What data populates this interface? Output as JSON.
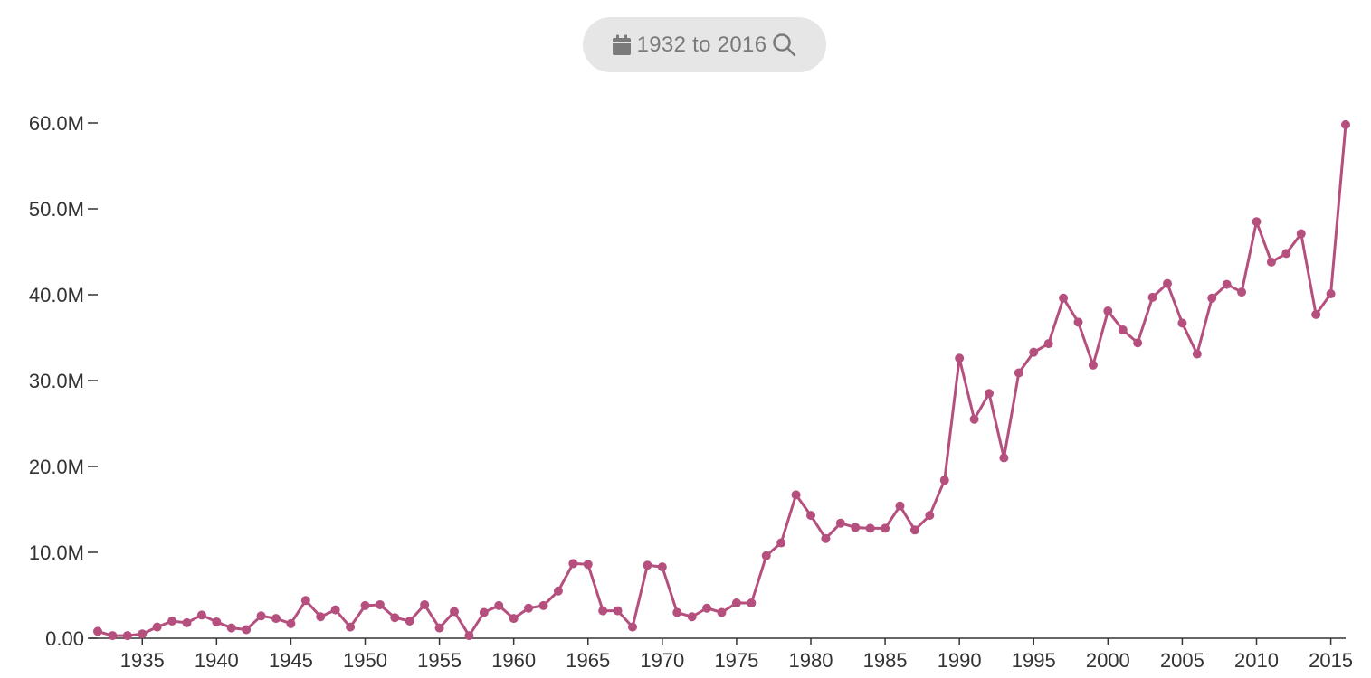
{
  "date_range": {
    "label": "1932 to 2016",
    "calendar_icon": "calendar-icon",
    "search_icon": "search-icon"
  },
  "colors": {
    "series": "#b5507e",
    "pill_background": "#e6e6e6",
    "pill_text": "#7a7a7a",
    "axis": "#333333"
  },
  "chart_data": {
    "type": "line",
    "title": "",
    "xlabel": "",
    "ylabel": "",
    "xlim": [
      1932,
      2016
    ],
    "ylim": [
      0,
      60000000
    ],
    "grid": false,
    "y_ticks": [
      {
        "value": 0,
        "label": "0.00"
      },
      {
        "value": 10000000,
        "label": "10.0M"
      },
      {
        "value": 20000000,
        "label": "20.0M"
      },
      {
        "value": 30000000,
        "label": "30.0M"
      },
      {
        "value": 40000000,
        "label": "40.0M"
      },
      {
        "value": 50000000,
        "label": "50.0M"
      },
      {
        "value": 60000000,
        "label": "60.0M"
      }
    ],
    "x_ticks": [
      {
        "value": 1935,
        "label": "1935"
      },
      {
        "value": 1940,
        "label": "1940"
      },
      {
        "value": 1945,
        "label": "1945"
      },
      {
        "value": 1950,
        "label": "1950"
      },
      {
        "value": 1955,
        "label": "1955"
      },
      {
        "value": 1960,
        "label": "1960"
      },
      {
        "value": 1965,
        "label": "1965"
      },
      {
        "value": 1970,
        "label": "1970"
      },
      {
        "value": 1975,
        "label": "1975"
      },
      {
        "value": 1980,
        "label": "1980"
      },
      {
        "value": 1985,
        "label": "1985"
      },
      {
        "value": 1990,
        "label": "1990"
      },
      {
        "value": 1995,
        "label": "1995"
      },
      {
        "value": 2000,
        "label": "2000"
      },
      {
        "value": 2005,
        "label": "2005"
      },
      {
        "value": 2010,
        "label": "2010"
      },
      {
        "value": 2015,
        "label": "2015"
      }
    ],
    "x": [
      1932,
      1933,
      1934,
      1935,
      1936,
      1937,
      1938,
      1939,
      1940,
      1941,
      1942,
      1943,
      1944,
      1945,
      1946,
      1947,
      1948,
      1949,
      1950,
      1951,
      1952,
      1953,
      1954,
      1955,
      1956,
      1957,
      1958,
      1959,
      1960,
      1961,
      1962,
      1963,
      1964,
      1965,
      1966,
      1967,
      1968,
      1969,
      1970,
      1971,
      1972,
      1973,
      1974,
      1975,
      1976,
      1977,
      1978,
      1979,
      1980,
      1981,
      1982,
      1983,
      1984,
      1985,
      1986,
      1987,
      1988,
      1989,
      1990,
      1991,
      1992,
      1993,
      1994,
      1995,
      1996,
      1997,
      1998,
      1999,
      2000,
      2001,
      2002,
      2003,
      2004,
      2005,
      2006,
      2007,
      2008,
      2009,
      2010,
      2011,
      2012,
      2013,
      2014,
      2015,
      2016
    ],
    "series": [
      {
        "values": [
          800000,
          300000,
          300000,
          500000,
          1300000,
          2000000,
          1800000,
          2700000,
          1900000,
          1200000,
          1000000,
          2600000,
          2300000,
          1700000,
          4400000,
          2500000,
          3300000,
          1300000,
          3800000,
          3900000,
          2400000,
          2000000,
          3900000,
          1200000,
          3100000,
          300000,
          3000000,
          3800000,
          2300000,
          3500000,
          3800000,
          5500000,
          8700000,
          8600000,
          3200000,
          3200000,
          1300000,
          8500000,
          8300000,
          3000000,
          2500000,
          3500000,
          3000000,
          4100000,
          4100000,
          9600000,
          11100000,
          16700000,
          14300000,
          11600000,
          13400000,
          12900000,
          12800000,
          12800000,
          15400000,
          12600000,
          14300000,
          18400000,
          32600000,
          25500000,
          28500000,
          21000000,
          30900000,
          33300000,
          34300000,
          39600000,
          36800000,
          31800000,
          38100000,
          35900000,
          34400000,
          39700000,
          41300000,
          36700000,
          33100000,
          39600000,
          41200000,
          40300000,
          48500000,
          43800000,
          44800000,
          47100000,
          37700000,
          40100000,
          59800000
        ]
      }
    ]
  }
}
